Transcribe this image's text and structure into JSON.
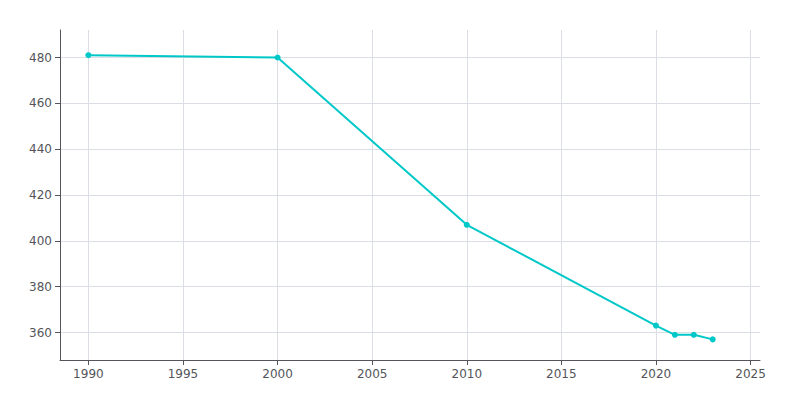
{
  "chart_data": {
    "type": "line",
    "x": [
      1990,
      2000,
      2010,
      2020,
      2021,
      2022,
      2023
    ],
    "values": [
      481,
      480,
      407,
      363,
      359,
      359,
      357
    ],
    "color": "#00c8c8",
    "marker": "circle",
    "xlim": [
      1988.5,
      2025.5
    ],
    "ylim": [
      348,
      492
    ],
    "xticks": [
      1990,
      1995,
      2000,
      2005,
      2010,
      2015,
      2020,
      2025
    ],
    "yticks": [
      360,
      380,
      400,
      420,
      440,
      460,
      480
    ],
    "grid": true
  }
}
